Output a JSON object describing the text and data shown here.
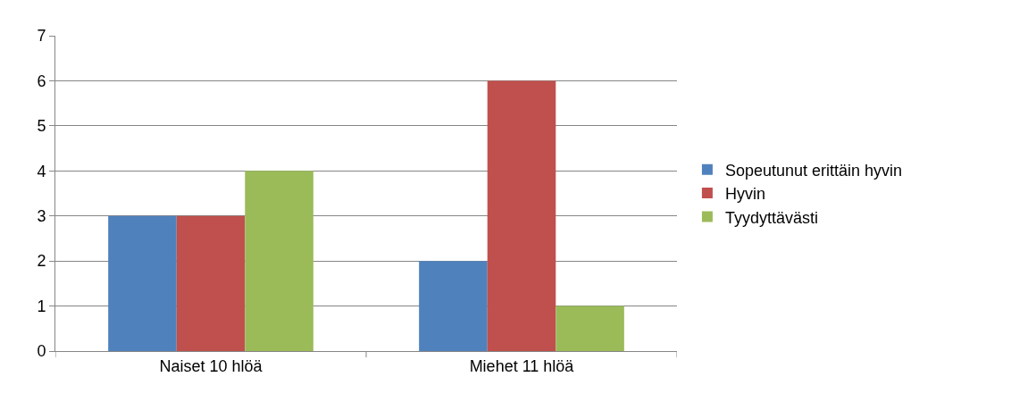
{
  "chart_data": {
    "type": "bar",
    "categories": [
      "Naiset 10 hlöä",
      "Miehet 11 hlöä"
    ],
    "series": [
      {
        "name": "Sopeutunut erittäin hyvin",
        "color": "#4f81bd",
        "values": [
          3,
          2
        ]
      },
      {
        "name": "Hyvin",
        "color": "#c0504d",
        "values": [
          3,
          6
        ]
      },
      {
        "name": "Tyydyttävästi",
        "color": "#9bbb59",
        "values": [
          4,
          1
        ]
      }
    ],
    "ylim": [
      0,
      7
    ],
    "yticks": [
      0,
      1,
      2,
      3,
      4,
      5,
      6,
      7
    ],
    "grid": "y",
    "legend": "right"
  }
}
